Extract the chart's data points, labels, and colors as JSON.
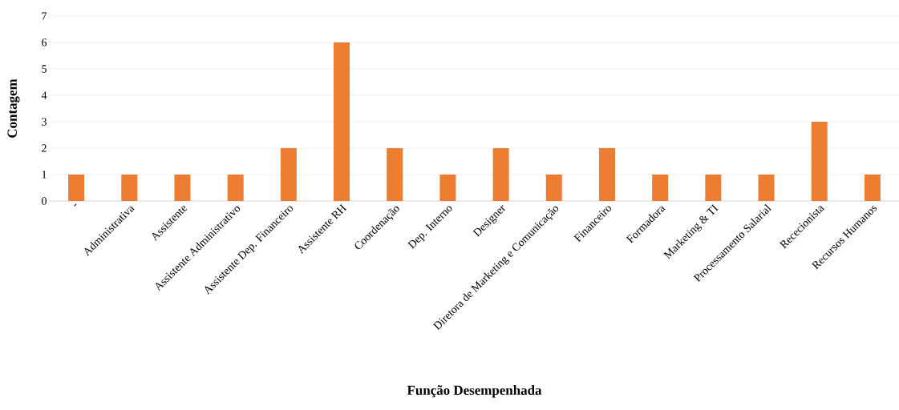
{
  "chart_data": {
    "type": "bar",
    "xlabel": "Função Desempenhada",
    "ylabel": "Contagem",
    "categories": [
      "-",
      "Administrativa",
      "Assistente",
      "Assistente Administrativo",
      "Assistente Dep. Financeiro",
      "Assistente RH",
      "Coordenação",
      "Dep. Interno",
      "Designer",
      "Diretora de Marketing e Comunicação",
      "Financeiro",
      "Formadora",
      "Marketing & TI",
      "Processamento Salarial",
      "Rececionista",
      "Recursos Humanos"
    ],
    "values": [
      1,
      1,
      1,
      1,
      2,
      6,
      2,
      1,
      2,
      1,
      2,
      1,
      1,
      1,
      3,
      1
    ],
    "color": "#ed7d31",
    "ylim": [
      0,
      7
    ],
    "yticks": [
      0,
      1,
      2,
      3,
      4,
      5,
      6,
      7
    ],
    "grid": "y"
  }
}
